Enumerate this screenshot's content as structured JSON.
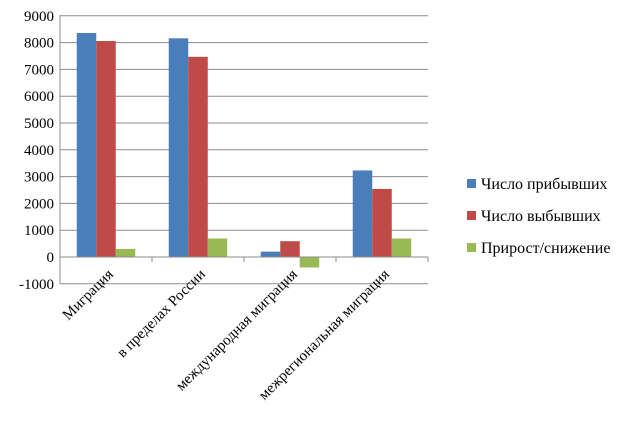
{
  "chart_data": {
    "type": "bar",
    "categories": [
      "Миграция",
      "в пределах России",
      "международная миграция",
      "межрегиональная миграция"
    ],
    "series": [
      {
        "name": "Число прибывших",
        "color": "#4a7ebb",
        "values": [
          8360,
          8160,
          200,
          3230
        ]
      },
      {
        "name": "Число выбывших",
        "color": "#be4b48",
        "values": [
          8060,
          7470,
          590,
          2540
        ]
      },
      {
        "name": "Прирост/снижение",
        "color": "#98b954",
        "values": [
          300,
          690,
          -390,
          690
        ]
      }
    ],
    "yticks": [
      "9000",
      "8000",
      "7000",
      "6000",
      "5000",
      "4000",
      "3000",
      "2000",
      "1000",
      "0",
      "-1000"
    ],
    "ylim": [
      -1000,
      9000
    ],
    "grid": true,
    "legend_position": "right"
  }
}
